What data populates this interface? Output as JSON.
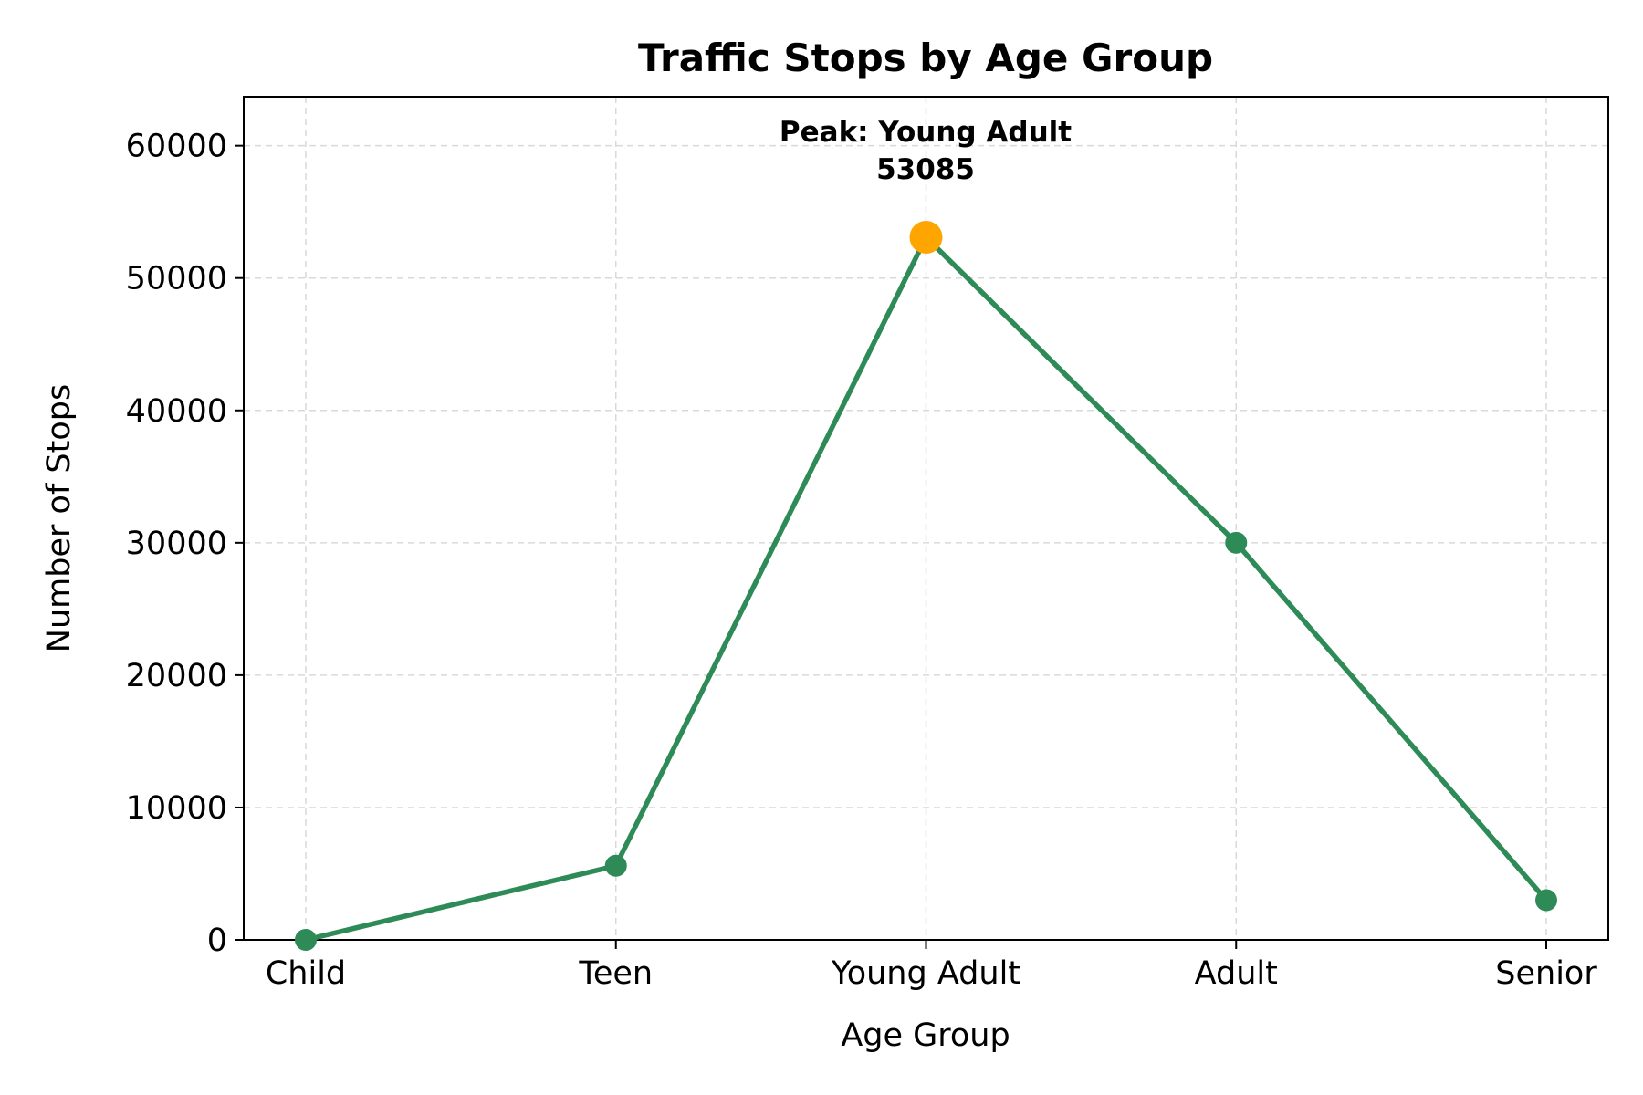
{
  "chart_data": {
    "type": "line",
    "title": "Traffic Stops by Age Group",
    "xlabel": "Age Group",
    "ylabel": "Number of Stops",
    "categories": [
      "Child",
      "Teen",
      "Young Adult",
      "Adult",
      "Senior"
    ],
    "series": [
      {
        "values": [
          0,
          5600,
          53085,
          30000,
          3000
        ],
        "color": "#2e8b57"
      }
    ],
    "ylim": [
      0,
      63700
    ],
    "yticks": [
      "0",
      "10000",
      "20000",
      "30000",
      "40000",
      "50000",
      "60000"
    ],
    "grid": true,
    "peak": {
      "category": "Young Adult",
      "value": 53085,
      "label_line1": "Peak: Young Adult",
      "label_line2": "53085",
      "color": "#ffa500"
    }
  }
}
